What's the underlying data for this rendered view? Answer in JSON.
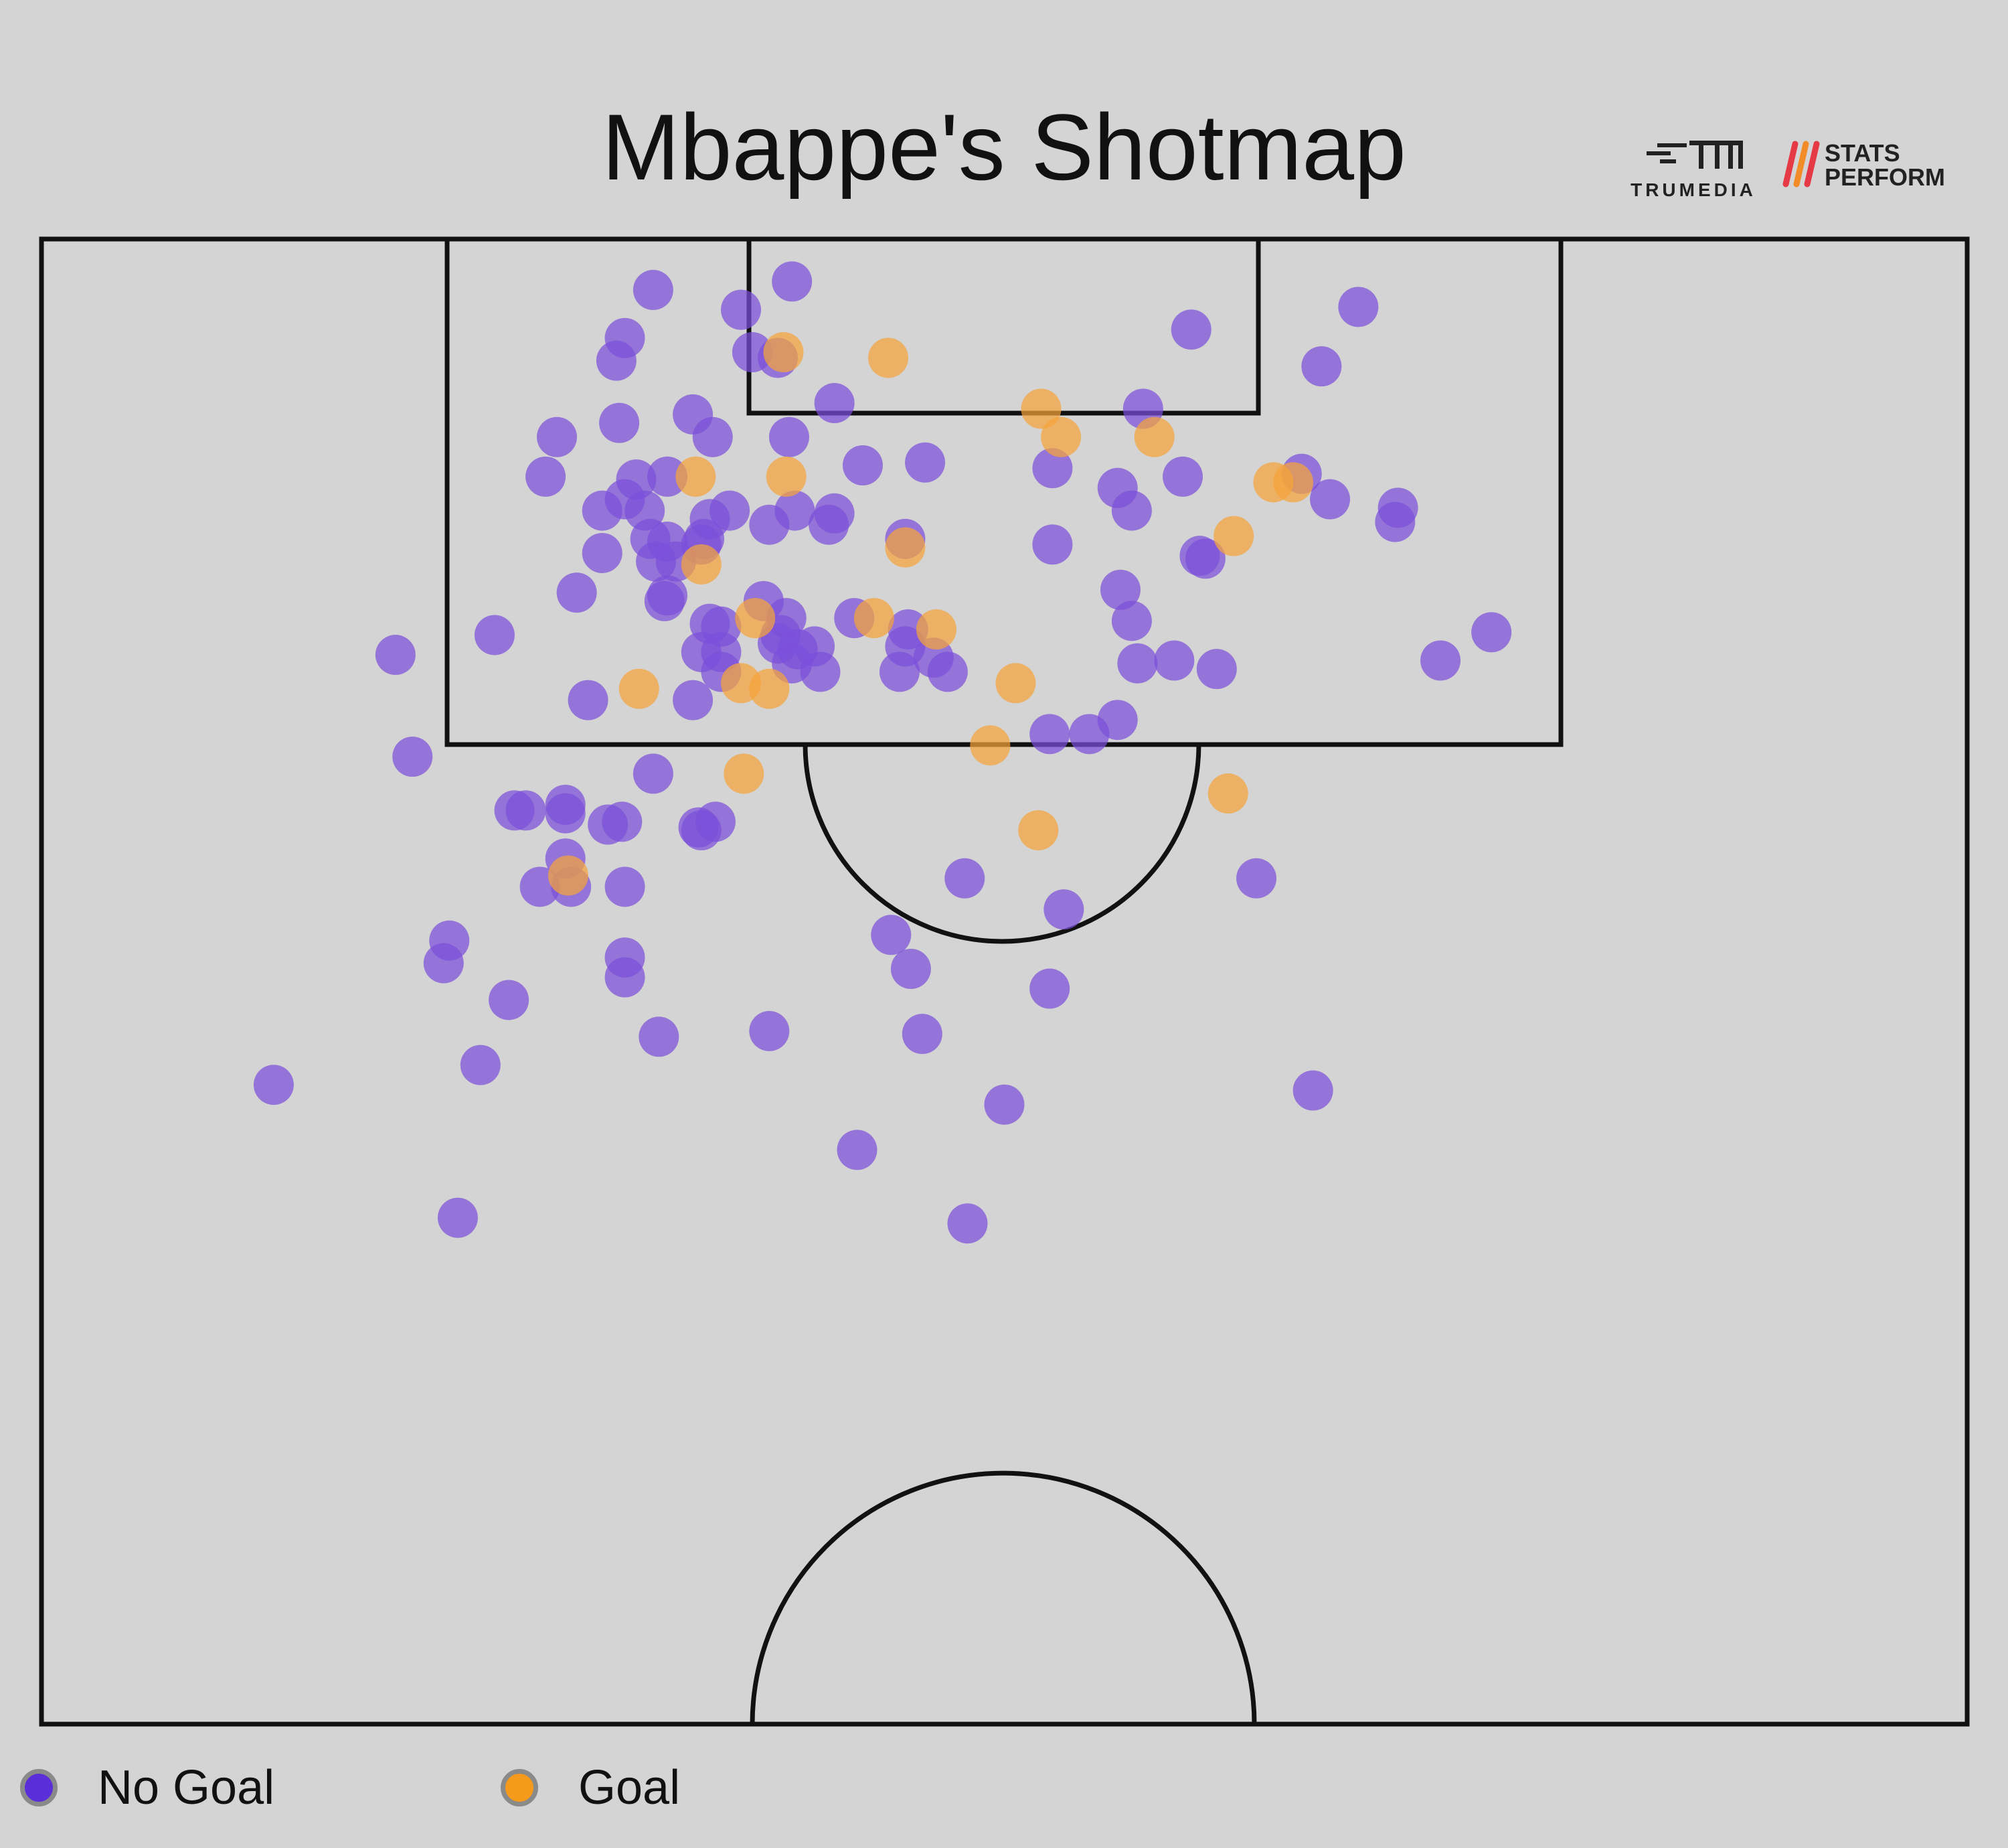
{
  "header": {
    "title": "Mbappe's Shotmap",
    "brand_trumedia": "TRUMEDIA",
    "brand_stats_perform_line1": "STATS",
    "brand_stats_perform_line2": "PERFORM"
  },
  "legend": {
    "no_goal_label": "No Goal",
    "goal_label": "Goal"
  },
  "colors": {
    "background": "#d4d4d4",
    "no_goal": "#7b4fd9",
    "goal": "#f5a43a",
    "pitch_lines": "#111111"
  },
  "chart_data": {
    "type": "scatter",
    "title": "Mbappe's Shotmap",
    "xlabel": "",
    "ylabel": "",
    "grid": false,
    "legend_placement": "bottom-left",
    "notes": "Half-pitch shot locations; x = metres across pitch (0-68, left to right), y = metres from goal line (0-52.5).",
    "xlim": [
      0,
      68
    ],
    "ylim": [
      0,
      52.5
    ],
    "series": [
      {
        "name": "No Goal",
        "color": "#7b4fd9",
        "points": [
          [
            21.6,
            1.8
          ],
          [
            26.5,
            1.5
          ],
          [
            24.7,
            2.5
          ],
          [
            20.6,
            3.5
          ],
          [
            20.3,
            4.3
          ],
          [
            25.1,
            4.0
          ],
          [
            26.0,
            4.2
          ],
          [
            28.0,
            5.8
          ],
          [
            40.6,
            3.2
          ],
          [
            45.2,
            4.5
          ],
          [
            46.5,
            2.4
          ],
          [
            20.4,
            6.5
          ],
          [
            23.0,
            6.2
          ],
          [
            18.2,
            7.0
          ],
          [
            23.7,
            7.0
          ],
          [
            26.4,
            7.0
          ],
          [
            29.0,
            8.0
          ],
          [
            35.7,
            8.1
          ],
          [
            31.2,
            7.9
          ],
          [
            38.9,
            6.0
          ],
          [
            17.8,
            8.4
          ],
          [
            21.0,
            8.5
          ],
          [
            22.1,
            8.4
          ],
          [
            20.6,
            9.2
          ],
          [
            19.8,
            9.6
          ],
          [
            21.3,
            9.6
          ],
          [
            23.6,
            9.9
          ],
          [
            24.3,
            9.6
          ],
          [
            26.6,
            9.6
          ],
          [
            28.0,
            9.7
          ],
          [
            27.8,
            10.1
          ],
          [
            25.7,
            10.1
          ],
          [
            38.0,
            8.8
          ],
          [
            40.3,
            8.4
          ],
          [
            38.5,
            9.6
          ],
          [
            44.5,
            8.3
          ],
          [
            45.5,
            9.2
          ],
          [
            47.9,
            9.5
          ],
          [
            47.8,
            10.0
          ],
          [
            21.5,
            10.6
          ],
          [
            22.1,
            10.7
          ],
          [
            23.4,
            10.6
          ],
          [
            23.3,
            10.8
          ],
          [
            19.8,
            11.1
          ],
          [
            21.7,
            11.4
          ],
          [
            22.4,
            11.4
          ],
          [
            30.5,
            10.6
          ],
          [
            35.7,
            10.8
          ],
          [
            40.9,
            11.2
          ],
          [
            41.1,
            11.3
          ],
          [
            18.9,
            12.5
          ],
          [
            22.1,
            12.6
          ],
          [
            22.0,
            12.8
          ],
          [
            25.5,
            12.8
          ],
          [
            23.6,
            13.6
          ],
          [
            24.0,
            13.7
          ],
          [
            26.3,
            13.4
          ],
          [
            26.1,
            14.0
          ],
          [
            28.7,
            13.4
          ],
          [
            30.6,
            13.8
          ],
          [
            38.1,
            12.4
          ],
          [
            38.5,
            13.5
          ],
          [
            23.3,
            14.6
          ],
          [
            24.0,
            14.6
          ],
          [
            26.0,
            14.3
          ],
          [
            26.7,
            14.5
          ],
          [
            27.3,
            14.4
          ],
          [
            30.5,
            14.4
          ],
          [
            31.5,
            14.8
          ],
          [
            27.5,
            15.3
          ],
          [
            26.5,
            15.0
          ],
          [
            24.0,
            15.3
          ],
          [
            30.3,
            15.3
          ],
          [
            32.0,
            15.3
          ],
          [
            38.7,
            15.0
          ],
          [
            40.0,
            14.9
          ],
          [
            41.5,
            15.2
          ],
          [
            49.4,
            14.9
          ],
          [
            51.2,
            13.9
          ],
          [
            12.5,
            14.7
          ],
          [
            16.0,
            14.0
          ],
          [
            19.3,
            16.3
          ],
          [
            23.0,
            16.3
          ],
          [
            35.6,
            17.5
          ],
          [
            37.0,
            17.5
          ],
          [
            38.0,
            17.0
          ],
          [
            13.1,
            18.3
          ],
          [
            21.6,
            18.9
          ],
          [
            16.7,
            20.2
          ],
          [
            17.1,
            20.2
          ],
          [
            18.5,
            20.0
          ],
          [
            18.5,
            20.3
          ],
          [
            20.0,
            20.7
          ],
          [
            20.5,
            20.6
          ],
          [
            23.2,
            20.8
          ],
          [
            23.8,
            20.6
          ],
          [
            23.3,
            20.9
          ],
          [
            18.5,
            21.9
          ],
          [
            17.6,
            22.9
          ],
          [
            18.7,
            22.9
          ],
          [
            20.6,
            22.9
          ],
          [
            32.6,
            22.6
          ],
          [
            42.9,
            22.6
          ],
          [
            36.1,
            23.7
          ],
          [
            14.4,
            24.8
          ],
          [
            14.2,
            25.6
          ],
          [
            20.6,
            25.4
          ],
          [
            20.6,
            26.1
          ],
          [
            30.0,
            24.6
          ],
          [
            30.7,
            25.8
          ],
          [
            35.6,
            26.5
          ],
          [
            16.5,
            26.9
          ],
          [
            21.8,
            28.2
          ],
          [
            25.7,
            28.0
          ],
          [
            31.1,
            28.1
          ],
          [
            15.5,
            29.2
          ],
          [
            8.2,
            29.9
          ],
          [
            34.0,
            30.6
          ],
          [
            44.9,
            30.1
          ],
          [
            28.8,
            32.2
          ],
          [
            14.7,
            34.6
          ],
          [
            32.7,
            34.8
          ]
        ]
      },
      {
        "name": "Goal",
        "color": "#f5a43a",
        "points": [
          [
            26.2,
            4.0
          ],
          [
            29.9,
            4.2
          ],
          [
            35.3,
            6.0
          ],
          [
            36.0,
            7.0
          ],
          [
            39.3,
            7.0
          ],
          [
            23.1,
            8.4
          ],
          [
            26.3,
            8.4
          ],
          [
            43.5,
            8.6
          ],
          [
            44.2,
            8.6
          ],
          [
            30.5,
            10.9
          ],
          [
            23.3,
            11.5
          ],
          [
            42.1,
            10.5
          ],
          [
            25.2,
            13.4
          ],
          [
            29.4,
            13.4
          ],
          [
            31.6,
            13.8
          ],
          [
            24.7,
            15.7
          ],
          [
            25.7,
            15.9
          ],
          [
            21.1,
            15.9
          ],
          [
            34.4,
            15.7
          ],
          [
            33.5,
            17.9
          ],
          [
            24.8,
            18.9
          ],
          [
            41.9,
            19.6
          ],
          [
            35.2,
            20.9
          ],
          [
            18.6,
            22.5
          ]
        ]
      }
    ]
  }
}
